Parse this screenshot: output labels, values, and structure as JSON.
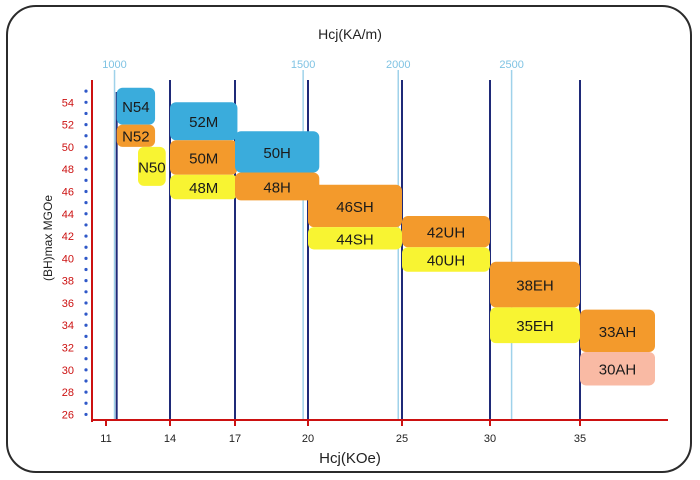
{
  "chart_data": {
    "type": "bar",
    "title": "",
    "xlabel": "Hcj(KOe)",
    "x2label": "Hcj(KA/m)",
    "ylabel": "(BH)max MGOe",
    "x_tick_labels": [
      "11",
      "14",
      "17",
      "20",
      "25",
      "30",
      "35"
    ],
    "x2_tick_labels": [
      "1000",
      "1500",
      "2000",
      "2500"
    ],
    "y_ticks": [
      26,
      28,
      30,
      32,
      34,
      36,
      38,
      40,
      42,
      44,
      46,
      48,
      50,
      52,
      54
    ],
    "ylim": [
      25.5,
      56
    ],
    "series": [
      {
        "name": "N54",
        "hcj_koe": [
          11.5,
          13.3
        ],
        "bhmax": [
          52,
          55.3
        ],
        "color": "#3aacdc"
      },
      {
        "name": "N52",
        "hcj_koe": [
          11.5,
          13.3
        ],
        "bhmax": [
          50,
          52
        ],
        "color": "#f39a2c"
      },
      {
        "name": "N50",
        "hcj_koe": [
          12.5,
          13.8
        ],
        "bhmax": [
          46.5,
          50
        ],
        "color": "#f8f432"
      },
      {
        "name": "52M",
        "hcj_koe": [
          14,
          17.1
        ],
        "bhmax": [
          50.6,
          54
        ],
        "color": "#3aacdc"
      },
      {
        "name": "50M",
        "hcj_koe": [
          14,
          17.1
        ],
        "bhmax": [
          47.5,
          50.6
        ],
        "color": "#f39a2c"
      },
      {
        "name": "48M",
        "hcj_koe": [
          14,
          17.1
        ],
        "bhmax": [
          45.3,
          47.5
        ],
        "color": "#f8f432"
      },
      {
        "name": "50H",
        "hcj_koe": [
          17,
          20.6
        ],
        "bhmax": [
          47.7,
          51.4
        ],
        "color": "#3aacdc"
      },
      {
        "name": "48H",
        "hcj_koe": [
          17,
          20.6
        ],
        "bhmax": [
          45.2,
          47.7
        ],
        "color": "#f39a2c"
      },
      {
        "name": "46SH",
        "hcj_koe": [
          20,
          25
        ],
        "bhmax": [
          42.8,
          46.6
        ],
        "color": "#f39a2c"
      },
      {
        "name": "44SH",
        "hcj_koe": [
          20,
          25
        ],
        "bhmax": [
          40.8,
          42.8
        ],
        "color": "#f8f432"
      },
      {
        "name": "42UH",
        "hcj_koe": [
          25,
          30
        ],
        "bhmax": [
          41,
          43.8
        ],
        "color": "#f39a2c"
      },
      {
        "name": "40UH",
        "hcj_koe": [
          25,
          30
        ],
        "bhmax": [
          38.8,
          41
        ],
        "color": "#f8f432"
      },
      {
        "name": "38EH",
        "hcj_koe": [
          30,
          35
        ],
        "bhmax": [
          35.6,
          39.7
        ],
        "color": "#f39a2c"
      },
      {
        "name": "35EH",
        "hcj_koe": [
          30,
          35
        ],
        "bhmax": [
          32.4,
          35.6
        ],
        "color": "#f8f432"
      },
      {
        "name": "33AH",
        "hcj_koe": [
          35,
          39
        ],
        "bhmax": [
          31.6,
          35.4
        ],
        "color": "#f39a2c"
      },
      {
        "name": "30AH",
        "hcj_koe": [
          35,
          39
        ],
        "bhmax": [
          28.6,
          31.6
        ],
        "color": "#f9baa4"
      }
    ],
    "x_slot_map_koe": [
      11,
      14,
      17,
      20,
      25,
      30,
      35,
      39
    ],
    "x2_positions_koe": [
      11.4,
      19.8,
      24.8,
      31.2
    ],
    "grid": true,
    "legend": "none"
  }
}
